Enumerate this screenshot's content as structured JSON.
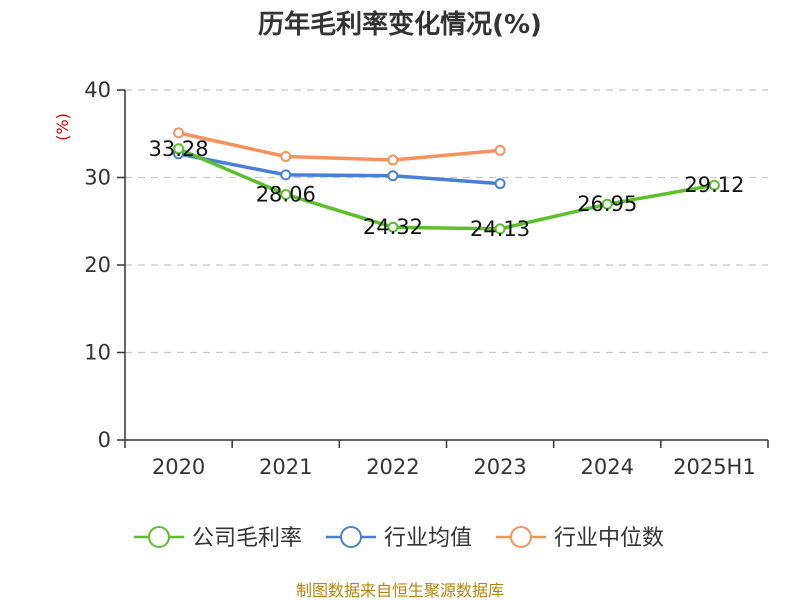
{
  "chart_data": {
    "type": "line",
    "title": "历年毛利率变化情况(%)",
    "ylabel": "(%)",
    "xlabel": "",
    "categories": [
      "2020",
      "2021",
      "2022",
      "2023",
      "2024",
      "2025H1"
    ],
    "ylim": [
      0,
      40
    ],
    "yticks": [
      0,
      10,
      20,
      30,
      40
    ],
    "grid": true,
    "legend_position": "bottom",
    "series": [
      {
        "name": "公司毛利率",
        "color": "#5cc02c",
        "values": [
          33.28,
          28.06,
          24.32,
          24.13,
          26.95,
          29.12
        ],
        "labels": [
          "33.28",
          "28.06",
          "24.32",
          "24.13",
          "26.95",
          "29.12"
        ]
      },
      {
        "name": "行业均值",
        "color": "#4a7fd6",
        "values": [
          32.7,
          30.3,
          30.2,
          29.3,
          null,
          null
        ]
      },
      {
        "name": "行业中位数",
        "color": "#f5925e",
        "values": [
          35.1,
          32.4,
          32.0,
          33.1,
          null,
          null
        ]
      }
    ]
  },
  "source": "制图数据来自恒生聚源数据库"
}
